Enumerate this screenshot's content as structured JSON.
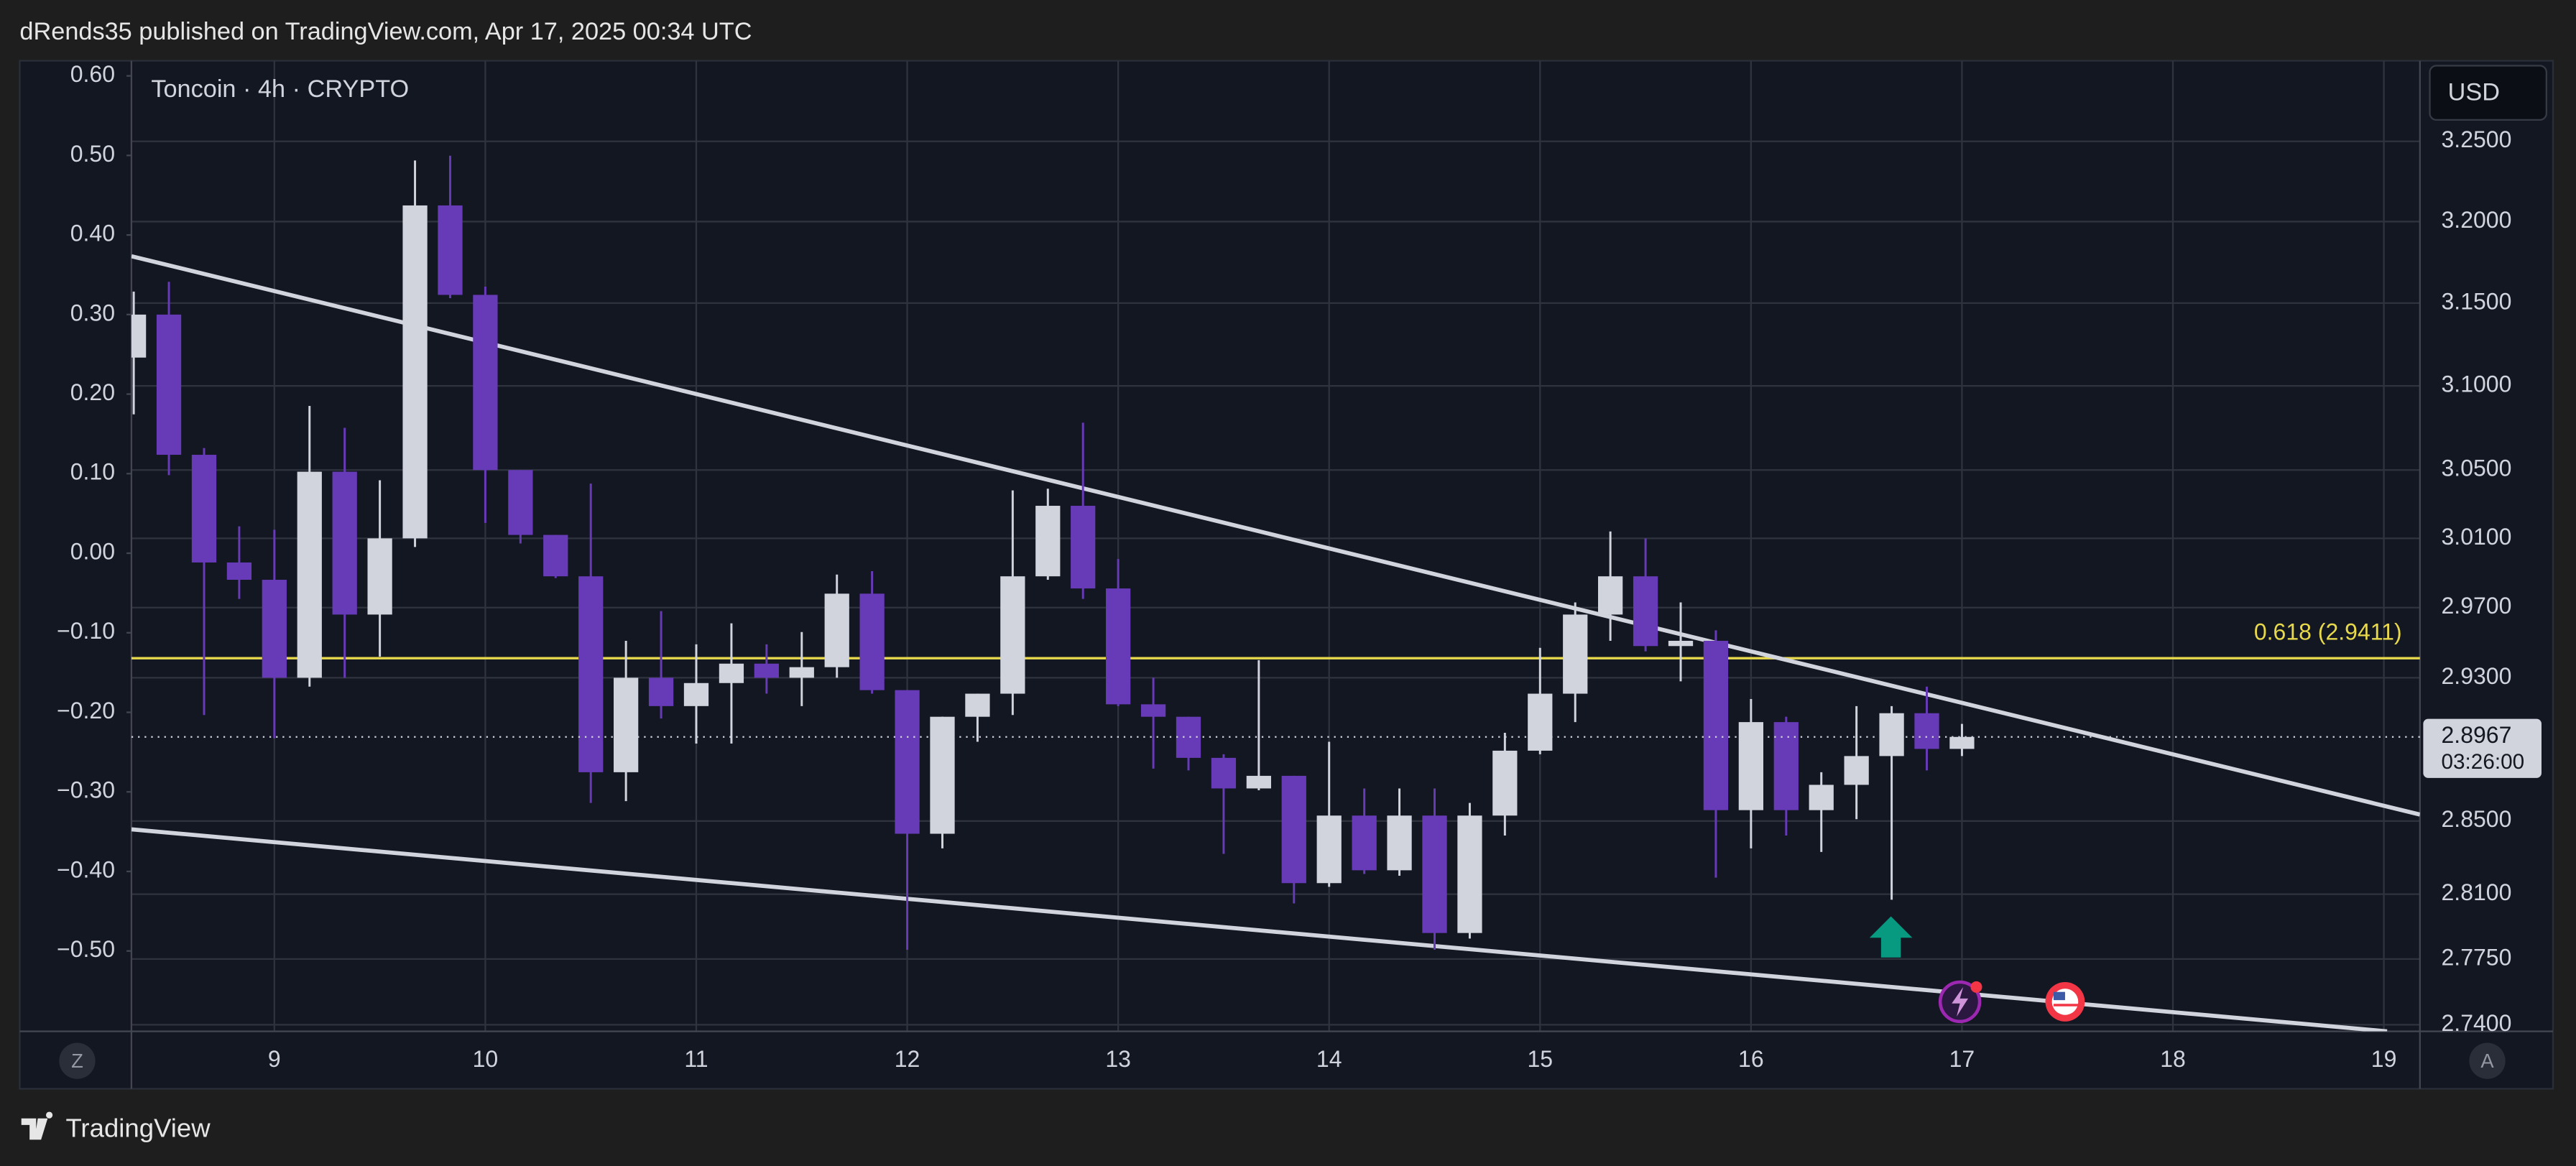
{
  "header": "dRends35 published on TradingView.com, Apr 17, 2025 00:34 UTC",
  "footer_brand": "TradingView",
  "chart_data": {
    "type": "candlestick",
    "title": "Toncoin · 4h · CRYPTO",
    "currency": "USD",
    "buttons": [
      "Z",
      "A"
    ],
    "x": [
      8.3333,
      8.5,
      8.6667,
      8.8333,
      9,
      9.1667,
      9.3333,
      9.5,
      9.6667,
      9.8333,
      10,
      10.1667,
      10.3333,
      10.5,
      10.6667,
      10.8333,
      11,
      11.1667,
      11.3333,
      11.5,
      11.6667,
      11.8333,
      12,
      12.1667,
      12.3333,
      12.5,
      12.6667,
      12.8333,
      13,
      13.1667,
      13.3333,
      13.5,
      13.6667,
      13.8333,
      14,
      14.1667,
      14.3333,
      14.5,
      14.6667,
      14.8333,
      15,
      15.1667,
      15.3333,
      15.5,
      15.6667,
      15.8333,
      16,
      16.1667,
      16.3333,
      16.5,
      16.6667,
      16.8333,
      17
    ],
    "open": [
      3.117,
      3.143,
      3.059,
      2.996,
      2.986,
      2.93,
      3.049,
      2.966,
      3.01,
      3.21,
      3.155,
      3.05,
      3.012,
      2.988,
      2.877,
      2.93,
      2.914,
      2.927,
      2.938,
      2.93,
      2.936,
      2.978,
      2.923,
      2.843,
      2.908,
      2.921,
      2.988,
      3.029,
      2.981,
      2.915,
      2.908,
      2.885,
      2.868,
      2.875,
      2.816,
      2.853,
      2.823,
      2.853,
      2.789,
      2.853,
      2.889,
      2.921,
      2.966,
      2.988,
      2.948,
      2.951,
      2.856,
      2.905,
      2.856,
      2.87,
      2.886,
      2.91,
      2.89
    ],
    "high": [
      3.157,
      3.163,
      3.063,
      3.017,
      3.015,
      3.088,
      3.075,
      3.044,
      3.238,
      3.241,
      3.16,
      3.05,
      3.012,
      3.042,
      2.951,
      2.968,
      2.949,
      2.961,
      2.949,
      2.956,
      2.989,
      2.991,
      2.923,
      2.908,
      2.921,
      3.038,
      3.039,
      3.078,
      2.998,
      2.93,
      2.908,
      2.887,
      2.94,
      2.875,
      2.894,
      2.868,
      2.868,
      2.868,
      2.86,
      2.899,
      2.947,
      2.973,
      3.014,
      3.01,
      2.973,
      2.957,
      2.918,
      2.908,
      2.877,
      2.914,
      2.914,
      2.925,
      2.904
    ],
    "low": [
      3.083,
      3.047,
      2.909,
      2.975,
      2.896,
      2.925,
      2.93,
      2.942,
      3.005,
      3.153,
      3.019,
      3.007,
      2.987,
      2.86,
      2.861,
      2.907,
      2.893,
      2.893,
      2.921,
      2.914,
      2.93,
      2.921,
      2.78,
      2.835,
      2.894,
      2.909,
      2.986,
      2.975,
      2.914,
      2.879,
      2.878,
      2.832,
      2.867,
      2.805,
      2.814,
      2.821,
      2.82,
      2.78,
      2.786,
      2.842,
      2.887,
      2.905,
      2.951,
      2.945,
      2.928,
      2.819,
      2.835,
      2.842,
      2.833,
      2.851,
      2.807,
      2.878,
      2.886
    ],
    "close": [
      3.143,
      3.059,
      2.996,
      2.986,
      2.93,
      3.049,
      2.966,
      3.01,
      3.21,
      3.155,
      3.05,
      3.012,
      2.988,
      2.877,
      2.93,
      2.914,
      2.927,
      2.938,
      2.93,
      2.936,
      2.978,
      2.923,
      2.843,
      2.908,
      2.921,
      2.988,
      3.029,
      2.981,
      2.915,
      2.908,
      2.885,
      2.868,
      2.875,
      2.816,
      2.853,
      2.823,
      2.853,
      2.789,
      2.853,
      2.889,
      2.921,
      2.966,
      2.988,
      2.948,
      2.951,
      2.856,
      2.905,
      2.856,
      2.87,
      2.886,
      2.91,
      2.89,
      2.8967
    ],
    "up_color": "#d1d4dc",
    "down_color": "#673ab7",
    "xlim": [
      8.3224,
      19.171
    ],
    "xticks": [
      9,
      10,
      11,
      12,
      13,
      14,
      15,
      16,
      17,
      18,
      19
    ],
    "ylim": [
      2.7365,
      3.301
    ],
    "log_scale": true,
    "yticks": [
      {
        "value": 3.25,
        "label": "3.2500"
      },
      {
        "value": 3.2,
        "label": "3.2000"
      },
      {
        "value": 3.15,
        "label": "3.1500"
      },
      {
        "value": 3.1,
        "label": "3.1000"
      },
      {
        "value": 3.05,
        "label": "3.0500"
      },
      {
        "value": 3.01,
        "label": "3.0100"
      },
      {
        "value": 2.97,
        "label": "2.9700"
      },
      {
        "value": 2.93,
        "label": "2.9300"
      },
      {
        "value": 2.85,
        "label": "2.8500"
      },
      {
        "value": 2.81,
        "label": "2.8100"
      },
      {
        "value": 2.775,
        "label": "2.7750"
      },
      {
        "value": 2.74,
        "label": "2.7400"
      }
    ],
    "y2lim": [
      -0.601,
      0.619
    ],
    "y2ticks": [
      {
        "value": 0.6,
        "label": "0.60"
      },
      {
        "value": 0.5,
        "label": "0.50"
      },
      {
        "value": 0.4,
        "label": "0.40"
      },
      {
        "value": 0.3,
        "label": "0.30"
      },
      {
        "value": 0.2,
        "label": "0.20"
      },
      {
        "value": 0.1,
        "label": "0.10"
      },
      {
        "value": 0,
        "label": "0.00"
      },
      {
        "value": -0.1,
        "label": "−0.10"
      },
      {
        "value": -0.2,
        "label": "−0.20"
      },
      {
        "value": -0.3,
        "label": "−0.30"
      },
      {
        "value": -0.4,
        "label": "−0.40"
      },
      {
        "value": -0.5,
        "label": "−0.50"
      }
    ],
    "grid": true,
    "fib": {
      "label": "0.618 (2.9411)",
      "value": 2.9411,
      "color": "#e8d94c"
    },
    "last_price": 2.8967,
    "countdown": "03:26:00"
  }
}
